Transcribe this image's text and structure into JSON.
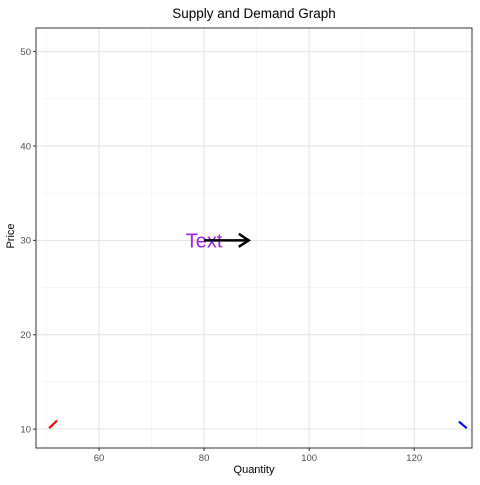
{
  "chart_data": {
    "type": "line",
    "title": "Supply and Demand Graph",
    "xlabel": "Quantity",
    "ylabel": "Price",
    "xlim": [
      48,
      131
    ],
    "ylim": [
      8,
      52.5
    ],
    "x_ticks": [
      60,
      80,
      100,
      120
    ],
    "y_ticks": [
      10,
      20,
      30,
      40,
      50
    ],
    "grid": true,
    "series": [
      {
        "color": "#ff0000",
        "x": [
          50.5,
          52
        ],
        "y": [
          10.1,
          10.9
        ]
      },
      {
        "color": "#0000ff",
        "x": [
          128.5,
          130
        ],
        "y": [
          10.8,
          10.1
        ]
      }
    ],
    "annotations": [
      {
        "type": "text",
        "label": "Text",
        "x": 80,
        "y": 30,
        "color": "#a020f0"
      },
      {
        "type": "arrow",
        "x": 80,
        "y": 30,
        "xend": 88.5,
        "yend": 30,
        "color": "#000000"
      }
    ]
  }
}
